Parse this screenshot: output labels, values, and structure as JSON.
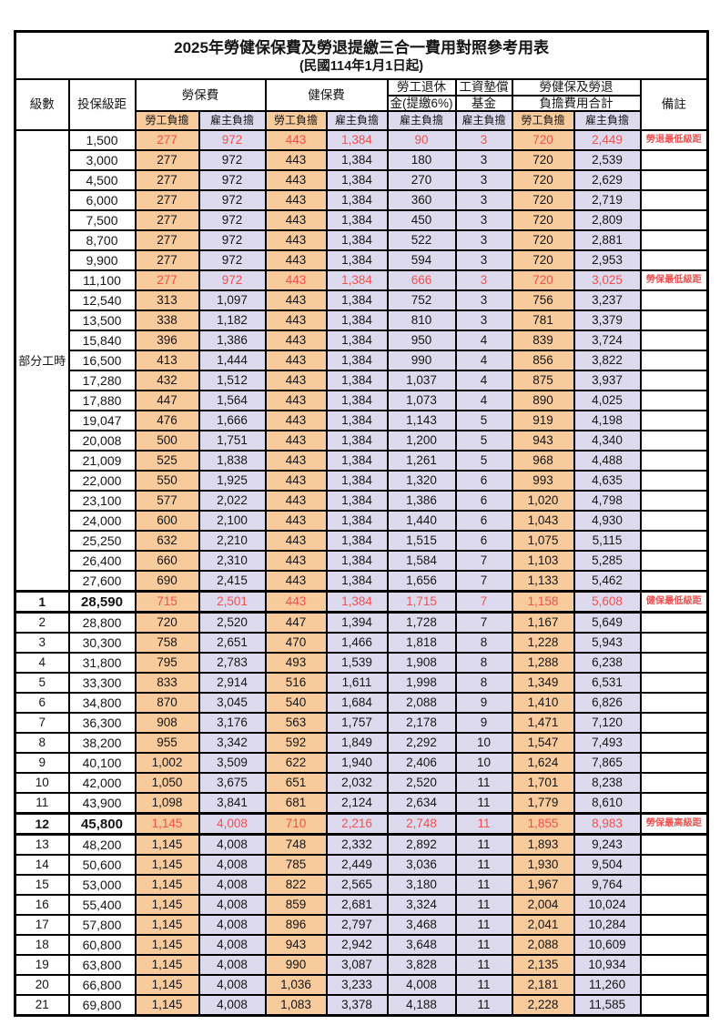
{
  "title": "2025年勞健保保費及勞退提繳三合一費用對照參考用表",
  "subtitle": "(民國114年1月1日起)",
  "colors": {
    "employee_bg": "#F8CB9D",
    "employer_bg": "#DEDAEE",
    "highlight_red": "#F05050",
    "border": "#000000"
  },
  "header": {
    "level": "級數",
    "bracket": "投保級距",
    "labor_insurance": "勞保費",
    "health_insurance": "健保費",
    "pension_line1": "勞工退休",
    "pension_line2": "金(提繳6%)",
    "wage_fund_line1": "工資墊償",
    "wage_fund_line2": "基金",
    "total_line1": "勞健保及勞退",
    "total_line2": "負擔費用合計",
    "remark": "備註",
    "employee_label": "勞工負擔",
    "employer_label": "雇主負擔"
  },
  "part_time_label": "部分工時",
  "row_fields": [
    "level",
    "bracket",
    "labor_employee",
    "labor_employer",
    "health_employee",
    "health_employer",
    "pension_employer",
    "fund_employer",
    "total_employee",
    "total_employer",
    "remark",
    "style"
  ],
  "rows": [
    [
      "",
      "1,500",
      "277",
      "972",
      "443",
      "1,384",
      "90",
      "3",
      "720",
      "2,449",
      "勞退最低級距",
      "red"
    ],
    [
      "",
      "3,000",
      "277",
      "972",
      "443",
      "1,384",
      "180",
      "3",
      "720",
      "2,539",
      "",
      ""
    ],
    [
      "",
      "4,500",
      "277",
      "972",
      "443",
      "1,384",
      "270",
      "3",
      "720",
      "2,629",
      "",
      ""
    ],
    [
      "",
      "6,000",
      "277",
      "972",
      "443",
      "1,384",
      "360",
      "3",
      "720",
      "2,719",
      "",
      ""
    ],
    [
      "",
      "7,500",
      "277",
      "972",
      "443",
      "1,384",
      "450",
      "3",
      "720",
      "2,809",
      "",
      ""
    ],
    [
      "",
      "8,700",
      "277",
      "972",
      "443",
      "1,384",
      "522",
      "3",
      "720",
      "2,881",
      "",
      ""
    ],
    [
      "",
      "9,900",
      "277",
      "972",
      "443",
      "1,384",
      "594",
      "3",
      "720",
      "2,953",
      "",
      ""
    ],
    [
      "",
      "11,100",
      "277",
      "972",
      "443",
      "1,384",
      "666",
      "3",
      "720",
      "3,025",
      "勞保最低級距",
      "red"
    ],
    [
      "",
      "12,540",
      "313",
      "1,097",
      "443",
      "1,384",
      "752",
      "3",
      "756",
      "3,237",
      "",
      ""
    ],
    [
      "",
      "13,500",
      "338",
      "1,182",
      "443",
      "1,384",
      "810",
      "3",
      "781",
      "3,379",
      "",
      ""
    ],
    [
      "",
      "15,840",
      "396",
      "1,386",
      "443",
      "1,384",
      "950",
      "4",
      "839",
      "3,724",
      "",
      ""
    ],
    [
      "",
      "16,500",
      "413",
      "1,444",
      "443",
      "1,384",
      "990",
      "4",
      "856",
      "3,822",
      "",
      ""
    ],
    [
      "",
      "17,280",
      "432",
      "1,512",
      "443",
      "1,384",
      "1,037",
      "4",
      "875",
      "3,937",
      "",
      ""
    ],
    [
      "",
      "17,880",
      "447",
      "1,564",
      "443",
      "1,384",
      "1,073",
      "4",
      "890",
      "4,025",
      "",
      ""
    ],
    [
      "",
      "19,047",
      "476",
      "1,666",
      "443",
      "1,384",
      "1,143",
      "5",
      "919",
      "4,198",
      "",
      ""
    ],
    [
      "",
      "20,008",
      "500",
      "1,751",
      "443",
      "1,384",
      "1,200",
      "5",
      "943",
      "4,340",
      "",
      ""
    ],
    [
      "",
      "21,009",
      "525",
      "1,838",
      "443",
      "1,384",
      "1,261",
      "5",
      "968",
      "4,488",
      "",
      ""
    ],
    [
      "",
      "22,000",
      "550",
      "1,925",
      "443",
      "1,384",
      "1,320",
      "6",
      "993",
      "4,635",
      "",
      ""
    ],
    [
      "",
      "23,100",
      "577",
      "2,022",
      "443",
      "1,384",
      "1,386",
      "6",
      "1,020",
      "4,798",
      "",
      ""
    ],
    [
      "",
      "24,000",
      "600",
      "2,100",
      "443",
      "1,384",
      "1,440",
      "6",
      "1,043",
      "4,930",
      "",
      ""
    ],
    [
      "",
      "25,250",
      "632",
      "2,210",
      "443",
      "1,384",
      "1,515",
      "6",
      "1,075",
      "5,115",
      "",
      ""
    ],
    [
      "",
      "26,400",
      "660",
      "2,310",
      "443",
      "1,384",
      "1,584",
      "7",
      "1,103",
      "5,285",
      "",
      ""
    ],
    [
      "",
      "27,600",
      "690",
      "2,415",
      "443",
      "1,384",
      "1,656",
      "7",
      "1,133",
      "5,462",
      "",
      ""
    ],
    [
      "1",
      "28,590",
      "715",
      "2,501",
      "443",
      "1,384",
      "1,715",
      "7",
      "1,158",
      "5,608",
      "健保最低級距",
      "red-bold"
    ],
    [
      "2",
      "28,800",
      "720",
      "2,520",
      "447",
      "1,394",
      "1,728",
      "7",
      "1,167",
      "5,649",
      "",
      ""
    ],
    [
      "3",
      "30,300",
      "758",
      "2,651",
      "470",
      "1,466",
      "1,818",
      "8",
      "1,228",
      "5,943",
      "",
      ""
    ],
    [
      "4",
      "31,800",
      "795",
      "2,783",
      "493",
      "1,539",
      "1,908",
      "8",
      "1,288",
      "6,238",
      "",
      ""
    ],
    [
      "5",
      "33,300",
      "833",
      "2,914",
      "516",
      "1,611",
      "1,998",
      "8",
      "1,349",
      "6,531",
      "",
      ""
    ],
    [
      "6",
      "34,800",
      "870",
      "3,045",
      "540",
      "1,684",
      "2,088",
      "9",
      "1,410",
      "6,826",
      "",
      ""
    ],
    [
      "7",
      "36,300",
      "908",
      "3,176",
      "563",
      "1,757",
      "2,178",
      "9",
      "1,471",
      "7,120",
      "",
      ""
    ],
    [
      "8",
      "38,200",
      "955",
      "3,342",
      "592",
      "1,849",
      "2,292",
      "10",
      "1,547",
      "7,493",
      "",
      ""
    ],
    [
      "9",
      "40,100",
      "1,002",
      "3,509",
      "622",
      "1,940",
      "2,406",
      "10",
      "1,624",
      "7,865",
      "",
      ""
    ],
    [
      "10",
      "42,000",
      "1,050",
      "3,675",
      "651",
      "2,032",
      "2,520",
      "11",
      "1,701",
      "8,238",
      "",
      ""
    ],
    [
      "11",
      "43,900",
      "1,098",
      "3,841",
      "681",
      "2,124",
      "2,634",
      "11",
      "1,779",
      "8,610",
      "",
      ""
    ],
    [
      "12",
      "45,800",
      "1,145",
      "4,008",
      "710",
      "2,216",
      "2,748",
      "11",
      "1,855",
      "8,983",
      "勞保最高級距",
      "red-bold"
    ],
    [
      "13",
      "48,200",
      "1,145",
      "4,008",
      "748",
      "2,332",
      "2,892",
      "11",
      "1,893",
      "9,243",
      "",
      ""
    ],
    [
      "14",
      "50,600",
      "1,145",
      "4,008",
      "785",
      "2,449",
      "3,036",
      "11",
      "1,930",
      "9,504",
      "",
      ""
    ],
    [
      "15",
      "53,000",
      "1,145",
      "4,008",
      "822",
      "2,565",
      "3,180",
      "11",
      "1,967",
      "9,764",
      "",
      ""
    ],
    [
      "16",
      "55,400",
      "1,145",
      "4,008",
      "859",
      "2,681",
      "3,324",
      "11",
      "2,004",
      "10,024",
      "",
      ""
    ],
    [
      "17",
      "57,800",
      "1,145",
      "4,008",
      "896",
      "2,797",
      "3,468",
      "11",
      "2,041",
      "10,284",
      "",
      ""
    ],
    [
      "18",
      "60,800",
      "1,145",
      "4,008",
      "943",
      "2,942",
      "3,648",
      "11",
      "2,088",
      "10,609",
      "",
      ""
    ],
    [
      "19",
      "63,800",
      "1,145",
      "4,008",
      "990",
      "3,087",
      "3,828",
      "11",
      "2,135",
      "10,934",
      "",
      ""
    ],
    [
      "20",
      "66,800",
      "1,145",
      "4,008",
      "1,036",
      "3,233",
      "4,008",
      "11",
      "2,181",
      "11,260",
      "",
      ""
    ],
    [
      "21",
      "69,800",
      "1,145",
      "4,008",
      "1,083",
      "3,378",
      "4,188",
      "11",
      "2,228",
      "11,585",
      "",
      ""
    ]
  ]
}
